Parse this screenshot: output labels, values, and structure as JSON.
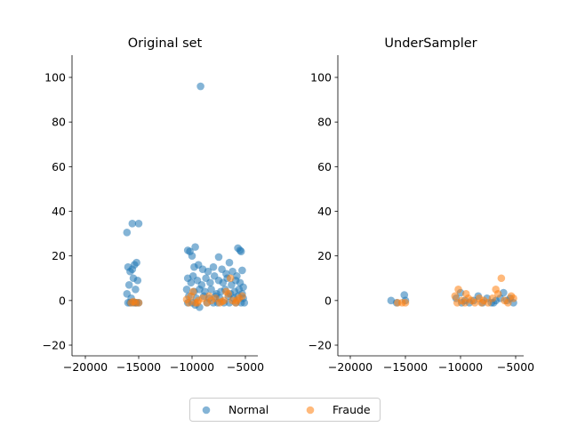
{
  "chart_data": [
    {
      "type": "scatter",
      "title": "Original set",
      "xlabel": "",
      "ylabel": "",
      "xlim": [
        -21000,
        -4000
      ],
      "ylim": [
        -25,
        110
      ],
      "xticks": [
        -20000,
        -15000,
        -10000,
        -5000
      ],
      "yticks": [
        -20,
        0,
        20,
        40,
        60,
        80,
        100
      ],
      "xtick_labels": [
        "−20000",
        "−15000",
        "−10000",
        "−5000"
      ],
      "ytick_labels": [
        "−20",
        "0",
        "20",
        "40",
        "60",
        "80",
        "100"
      ],
      "spines": "left-bottom",
      "series": [
        {
          "name": "Normal",
          "color": "#1f77b4",
          "points": [
            [
              -9200,
              96
            ],
            [
              -15600,
              34.5
            ],
            [
              -15000,
              34.5
            ],
            [
              -16100,
              30.5
            ],
            [
              -9700,
              24
            ],
            [
              -10400,
              22.5
            ],
            [
              -10200,
              22
            ],
            [
              -5700,
              23.5
            ],
            [
              -5500,
              22.5
            ],
            [
              -5400,
              22
            ],
            [
              -10000,
              20
            ],
            [
              -7500,
              19.5
            ],
            [
              -6500,
              17
            ],
            [
              -15200,
              17
            ],
            [
              -15400,
              16
            ],
            [
              -15800,
              13
            ],
            [
              -16000,
              15
            ],
            [
              -15600,
              14
            ],
            [
              -9800,
              15
            ],
            [
              -9400,
              16
            ],
            [
              -9000,
              14
            ],
            [
              -8500,
              13
            ],
            [
              -8000,
              15
            ],
            [
              -7200,
              14
            ],
            [
              -6800,
              12
            ],
            [
              -6200,
              13
            ],
            [
              -5800,
              11
            ],
            [
              -5300,
              13.5
            ],
            [
              -15100,
              9
            ],
            [
              -15500,
              10
            ],
            [
              -15900,
              7
            ],
            [
              -15300,
              5
            ],
            [
              -16100,
              3
            ],
            [
              -15700,
              1
            ],
            [
              -15200,
              -1
            ],
            [
              -10400,
              10
            ],
            [
              -10100,
              8
            ],
            [
              -9900,
              11
            ],
            [
              -9500,
              9
            ],
            [
              -9100,
              7
            ],
            [
              -8700,
              10
            ],
            [
              -8300,
              8
            ],
            [
              -7900,
              11
            ],
            [
              -7500,
              9
            ],
            [
              -7100,
              8
            ],
            [
              -6700,
              10
            ],
            [
              -6300,
              7
            ],
            [
              -5900,
              9
            ],
            [
              -5500,
              8
            ],
            [
              -5200,
              6
            ],
            [
              -10500,
              5
            ],
            [
              -9800,
              4
            ],
            [
              -9300,
              5
            ],
            [
              -8800,
              4
            ],
            [
              -8200,
              5
            ],
            [
              -7700,
              3
            ],
            [
              -7300,
              4
            ],
            [
              -6900,
              5
            ],
            [
              -6400,
              3
            ],
            [
              -6000,
              4
            ],
            [
              -5600,
              5
            ],
            [
              -5300,
              3
            ],
            [
              -10300,
              2
            ],
            [
              -9600,
              1
            ],
            [
              -8900,
              2
            ],
            [
              -8400,
              1
            ],
            [
              -7800,
              2
            ],
            [
              -7400,
              1
            ],
            [
              -6600,
              2
            ],
            [
              -6100,
              1
            ],
            [
              -5700,
              2
            ],
            [
              -5200,
              1
            ],
            [
              -10400,
              -1
            ],
            [
              -10000,
              -1
            ],
            [
              -9700,
              -2
            ],
            [
              -9300,
              -3
            ],
            [
              -8600,
              -1
            ],
            [
              -8000,
              -1
            ],
            [
              -7600,
              -1
            ],
            [
              -7000,
              -1
            ],
            [
              -6500,
              -1
            ],
            [
              -5900,
              -1
            ],
            [
              -5400,
              -1
            ],
            [
              -5100,
              -1
            ],
            [
              -16000,
              -1
            ],
            [
              -15800,
              -1
            ],
            [
              -15500,
              -1
            ],
            [
              -15300,
              -1
            ],
            [
              -15000,
              -1
            ]
          ]
        },
        {
          "name": "Fraude",
          "color": "#ff7f0e",
          "points": [
            [
              -15700,
              -1
            ],
            [
              -15300,
              -1
            ],
            [
              -15000,
              -1
            ],
            [
              -15500,
              -0.5
            ],
            [
              -10300,
              -1
            ],
            [
              -10100,
              2
            ],
            [
              -9900,
              4
            ],
            [
              -9700,
              -1
            ],
            [
              -9400,
              0
            ],
            [
              -9000,
              1
            ],
            [
              -8600,
              -1
            ],
            [
              -8200,
              0
            ],
            [
              -7800,
              1
            ],
            [
              -7400,
              -1
            ],
            [
              -7000,
              0
            ],
            [
              -6800,
              4
            ],
            [
              -6600,
              3
            ],
            [
              -6400,
              10
            ],
            [
              -6200,
              0
            ],
            [
              -5900,
              -1
            ],
            [
              -5600,
              1
            ],
            [
              -5300,
              2
            ],
            [
              -10500,
              0.5
            ],
            [
              -9500,
              -1
            ],
            [
              -8400,
              2
            ],
            [
              -7200,
              -0.5
            ],
            [
              -5800,
              0
            ]
          ]
        }
      ]
    },
    {
      "type": "scatter",
      "title": "UnderSampler",
      "xlabel": "",
      "ylabel": "",
      "xlim": [
        -21000,
        -4000
      ],
      "ylim": [
        -25,
        110
      ],
      "xticks": [
        -20000,
        -15000,
        -10000,
        -5000
      ],
      "yticks": [
        -20,
        0,
        20,
        40,
        60,
        80,
        100
      ],
      "xtick_labels": [
        "−20000",
        "−15000",
        "−10000",
        "−5000"
      ],
      "ytick_labels": [
        "−20",
        "0",
        "20",
        "40",
        "60",
        "80",
        "100"
      ],
      "spines": "left-bottom",
      "series": [
        {
          "name": "Normal",
          "color": "#1f77b4",
          "points": [
            [
              -16300,
              0
            ],
            [
              -15100,
              2.5
            ],
            [
              -15000,
              0
            ],
            [
              -15800,
              -1
            ],
            [
              -10400,
              1
            ],
            [
              -10000,
              3.5
            ],
            [
              -9600,
              0
            ],
            [
              -9200,
              -1
            ],
            [
              -8800,
              0
            ],
            [
              -8400,
              2
            ],
            [
              -8000,
              -1
            ],
            [
              -7600,
              1
            ],
            [
              -7200,
              -1
            ],
            [
              -6800,
              0
            ],
            [
              -6400,
              1
            ],
            [
              -6100,
              3.5
            ],
            [
              -5800,
              0
            ],
            [
              -5500,
              1
            ],
            [
              -5200,
              -1
            ],
            [
              -9900,
              -1
            ],
            [
              -7000,
              -1
            ]
          ]
        },
        {
          "name": "Fraude",
          "color": "#ff7f0e",
          "points": [
            [
              -15700,
              -1
            ],
            [
              -15300,
              -1
            ],
            [
              -15000,
              -1
            ],
            [
              -10500,
              2
            ],
            [
              -10200,
              5
            ],
            [
              -9900,
              0
            ],
            [
              -9600,
              -1
            ],
            [
              -9300,
              1
            ],
            [
              -9000,
              0
            ],
            [
              -8700,
              -1
            ],
            [
              -8300,
              1
            ],
            [
              -7900,
              0
            ],
            [
              -7500,
              -1
            ],
            [
              -7100,
              1
            ],
            [
              -6800,
              5
            ],
            [
              -6600,
              3
            ],
            [
              -6300,
              10
            ],
            [
              -6000,
              0
            ],
            [
              -5700,
              -1
            ],
            [
              -5400,
              2
            ],
            [
              -5200,
              1
            ],
            [
              -10300,
              -1
            ],
            [
              -9500,
              3
            ],
            [
              -8100,
              -1
            ]
          ]
        }
      ]
    }
  ],
  "legend": {
    "placement": "bottom-center",
    "items": [
      {
        "label": "Normal",
        "color": "#1f77b4"
      },
      {
        "label": "Fraude",
        "color": "#ff7f0e"
      }
    ]
  }
}
